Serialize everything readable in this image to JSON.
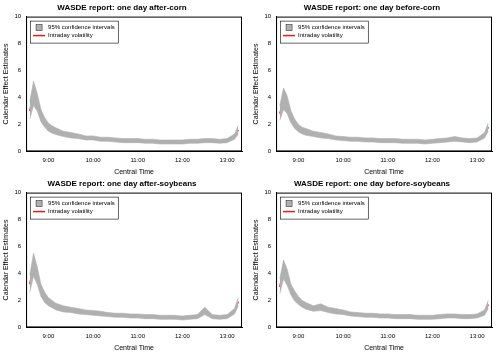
{
  "chart_data": [
    {
      "type": "line",
      "title": "WASDE report: one day after-corn",
      "x_label": "Central Time",
      "y_label": "Calendar Effect Estimates",
      "x": [
        515,
        520,
        525,
        530,
        535,
        540,
        545,
        550,
        560,
        570,
        580,
        590,
        600,
        610,
        620,
        630,
        640,
        650,
        660,
        670,
        680,
        690,
        700,
        710,
        720,
        730,
        740,
        750,
        760,
        770,
        780,
        790,
        795
      ],
      "series": [
        {
          "name": "Intraday volatility",
          "color": "#e41a1c",
          "line_style": "solid",
          "values": [
            3.0,
            4.2,
            3.6,
            2.6,
            2.1,
            1.8,
            1.6,
            1.5,
            1.3,
            1.2,
            1.1,
            1.0,
            1.0,
            0.9,
            0.9,
            0.85,
            0.8,
            0.8,
            0.8,
            0.75,
            0.75,
            0.7,
            0.7,
            0.7,
            0.7,
            0.75,
            0.75,
            0.8,
            0.8,
            0.75,
            0.8,
            1.1,
            1.6
          ]
        }
      ],
      "confidence_interval": {
        "name": "95% confidence intervals",
        "color": "#b0b0b0",
        "lower": [
          2.4,
          3.4,
          3.0,
          2.2,
          1.8,
          1.5,
          1.35,
          1.25,
          1.1,
          1.0,
          0.95,
          0.85,
          0.85,
          0.75,
          0.75,
          0.7,
          0.65,
          0.65,
          0.65,
          0.6,
          0.6,
          0.55,
          0.55,
          0.55,
          0.55,
          0.6,
          0.6,
          0.65,
          0.65,
          0.6,
          0.65,
          0.9,
          1.3
        ],
        "upper": [
          3.7,
          5.2,
          4.3,
          3.1,
          2.5,
          2.1,
          1.9,
          1.75,
          1.5,
          1.4,
          1.3,
          1.15,
          1.15,
          1.05,
          1.05,
          1.0,
          0.95,
          0.95,
          0.95,
          0.9,
          0.9,
          0.85,
          0.85,
          0.85,
          0.85,
          0.9,
          0.9,
          0.95,
          0.95,
          0.9,
          0.95,
          1.3,
          1.9
        ]
      },
      "xlim": [
        510,
        800
      ],
      "xticks": [
        {
          "value": 540,
          "label": "9:00"
        },
        {
          "value": 600,
          "label": "10:00"
        },
        {
          "value": 660,
          "label": "11:00"
        },
        {
          "value": 720,
          "label": "12:00"
        },
        {
          "value": 780,
          "label": "13:00"
        }
      ],
      "ylim": [
        0,
        10
      ],
      "yticks": [
        0,
        2,
        4,
        6,
        8,
        10
      ],
      "grid": false,
      "legend": "top-left"
    },
    {
      "type": "line",
      "title": "WASDE report: one day before-corn",
      "x_label": "Central Time",
      "y_label": "Calendar Effect Estimates",
      "x": [
        515,
        520,
        525,
        530,
        535,
        540,
        545,
        550,
        560,
        570,
        580,
        590,
        600,
        610,
        620,
        630,
        640,
        650,
        660,
        670,
        680,
        690,
        700,
        710,
        720,
        730,
        740,
        750,
        760,
        770,
        780,
        790,
        795
      ],
      "series": [
        {
          "name": "Intraday volatility",
          "color": "#e41a1c",
          "line_style": "solid",
          "values": [
            2.8,
            3.8,
            3.4,
            2.5,
            2.0,
            1.7,
            1.55,
            1.45,
            1.3,
            1.2,
            1.1,
            1.0,
            0.95,
            0.9,
            0.9,
            0.85,
            0.85,
            0.8,
            0.8,
            0.8,
            0.75,
            0.75,
            0.75,
            0.7,
            0.75,
            0.8,
            0.85,
            0.9,
            0.85,
            0.8,
            0.85,
            1.2,
            1.8
          ]
        }
      ],
      "confidence_interval": {
        "name": "95% confidence intervals",
        "color": "#b0b0b0",
        "lower": [
          2.3,
          3.1,
          2.8,
          2.1,
          1.7,
          1.45,
          1.3,
          1.2,
          1.1,
          1.0,
          0.95,
          0.85,
          0.8,
          0.75,
          0.75,
          0.7,
          0.7,
          0.65,
          0.65,
          0.65,
          0.6,
          0.6,
          0.6,
          0.55,
          0.6,
          0.65,
          0.7,
          0.75,
          0.7,
          0.65,
          0.7,
          1.0,
          1.5
        ],
        "upper": [
          3.4,
          4.7,
          4.1,
          3.0,
          2.4,
          2.0,
          1.8,
          1.7,
          1.5,
          1.4,
          1.3,
          1.15,
          1.1,
          1.05,
          1.05,
          1.0,
          1.0,
          0.95,
          0.95,
          0.95,
          0.9,
          0.9,
          0.9,
          0.85,
          0.9,
          0.95,
          1.0,
          1.1,
          1.0,
          0.95,
          1.0,
          1.4,
          2.1
        ]
      },
      "xlim": [
        510,
        800
      ],
      "xticks": [
        {
          "value": 540,
          "label": "9:00"
        },
        {
          "value": 600,
          "label": "10:00"
        },
        {
          "value": 660,
          "label": "11:00"
        },
        {
          "value": 720,
          "label": "12:00"
        },
        {
          "value": 780,
          "label": "13:00"
        }
      ],
      "ylim": [
        0,
        10
      ],
      "yticks": [
        0,
        2,
        4,
        6,
        8,
        10
      ],
      "grid": false,
      "legend": "top-left"
    },
    {
      "type": "line",
      "title": "WASDE report: one day after-soybeans",
      "x_label": "Central Time",
      "y_label": "Calendar Effect Estimates",
      "x": [
        515,
        520,
        525,
        530,
        535,
        540,
        545,
        550,
        560,
        570,
        580,
        590,
        600,
        610,
        620,
        630,
        640,
        650,
        660,
        670,
        680,
        690,
        700,
        710,
        720,
        730,
        740,
        750,
        760,
        770,
        780,
        790,
        795
      ],
      "series": [
        {
          "name": "Intraday volatility",
          "color": "#e41a1c",
          "line_style": "solid",
          "values": [
            3.2,
            4.6,
            3.8,
            2.7,
            2.2,
            1.9,
            1.7,
            1.55,
            1.35,
            1.3,
            1.2,
            1.1,
            1.05,
            1.0,
            0.95,
            0.9,
            0.9,
            0.85,
            0.85,
            0.8,
            0.8,
            0.75,
            0.75,
            0.75,
            0.7,
            0.75,
            0.8,
            1.2,
            0.8,
            0.75,
            0.8,
            1.2,
            1.9
          ]
        }
      ],
      "confidence_interval": {
        "name": "95% confidence intervals",
        "color": "#b0b0b0",
        "lower": [
          2.6,
          3.8,
          3.2,
          2.3,
          1.85,
          1.6,
          1.45,
          1.3,
          1.15,
          1.1,
          1.0,
          0.95,
          0.9,
          0.85,
          0.8,
          0.75,
          0.75,
          0.7,
          0.7,
          0.65,
          0.65,
          0.6,
          0.6,
          0.6,
          0.55,
          0.6,
          0.65,
          0.95,
          0.65,
          0.6,
          0.65,
          1.0,
          1.6
        ],
        "upper": [
          3.9,
          5.5,
          4.5,
          3.2,
          2.6,
          2.2,
          2.0,
          1.8,
          1.6,
          1.5,
          1.4,
          1.3,
          1.25,
          1.2,
          1.1,
          1.05,
          1.05,
          1.0,
          1.0,
          0.95,
          0.95,
          0.9,
          0.9,
          0.9,
          0.85,
          0.9,
          0.95,
          1.5,
          0.95,
          0.9,
          0.95,
          1.4,
          2.2
        ]
      },
      "xlim": [
        510,
        800
      ],
      "xticks": [
        {
          "value": 540,
          "label": "9:00"
        },
        {
          "value": 600,
          "label": "10:00"
        },
        {
          "value": 660,
          "label": "11:00"
        },
        {
          "value": 720,
          "label": "12:00"
        },
        {
          "value": 780,
          "label": "13:00"
        }
      ],
      "ylim": [
        0,
        10
      ],
      "yticks": [
        0,
        2,
        4,
        6,
        8,
        10
      ],
      "grid": false,
      "legend": "top-left"
    },
    {
      "type": "line",
      "title": "WASDE report: one day before-soybeans",
      "x_label": "Central Time",
      "y_label": "Calendar Effect Estimates",
      "x": [
        515,
        520,
        525,
        530,
        535,
        540,
        545,
        550,
        560,
        570,
        580,
        590,
        600,
        610,
        620,
        630,
        640,
        650,
        660,
        670,
        680,
        690,
        700,
        710,
        720,
        730,
        740,
        750,
        760,
        770,
        780,
        790,
        795
      ],
      "series": [
        {
          "name": "Intraday volatility",
          "color": "#e41a1c",
          "line_style": "solid",
          "values": [
            3.0,
            4.3,
            3.7,
            2.8,
            2.3,
            2.0,
            1.75,
            1.6,
            1.4,
            1.5,
            1.3,
            1.2,
            1.1,
            1.0,
            0.95,
            0.9,
            0.9,
            0.85,
            0.85,
            0.8,
            0.8,
            0.8,
            0.75,
            0.75,
            0.75,
            0.8,
            0.85,
            0.85,
            0.8,
            0.8,
            0.85,
            1.1,
            1.7
          ]
        }
      ],
      "confidence_interval": {
        "name": "95% confidence intervals",
        "color": "#b0b0b0",
        "lower": [
          2.5,
          3.6,
          3.1,
          2.4,
          1.95,
          1.7,
          1.5,
          1.35,
          1.2,
          1.25,
          1.1,
          1.0,
          0.95,
          0.85,
          0.8,
          0.75,
          0.75,
          0.7,
          0.7,
          0.65,
          0.65,
          0.65,
          0.6,
          0.6,
          0.6,
          0.65,
          0.7,
          0.7,
          0.65,
          0.65,
          0.7,
          0.9,
          1.4
        ],
        "upper": [
          3.6,
          5.0,
          4.3,
          3.2,
          2.7,
          2.3,
          2.0,
          1.85,
          1.6,
          1.75,
          1.5,
          1.4,
          1.3,
          1.15,
          1.1,
          1.05,
          1.05,
          1.0,
          1.0,
          0.95,
          0.95,
          0.95,
          0.9,
          0.9,
          0.9,
          0.95,
          1.0,
          1.0,
          0.95,
          0.95,
          1.0,
          1.3,
          2.0
        ]
      },
      "xlim": [
        510,
        800
      ],
      "xticks": [
        {
          "value": 540,
          "label": "9:00"
        },
        {
          "value": 600,
          "label": "10:00"
        },
        {
          "value": 660,
          "label": "11:00"
        },
        {
          "value": 720,
          "label": "12:00"
        },
        {
          "value": 780,
          "label": "13:00"
        }
      ],
      "ylim": [
        0,
        10
      ],
      "yticks": [
        0,
        2,
        4,
        6,
        8,
        10
      ],
      "grid": false,
      "legend": "top-left"
    }
  ]
}
